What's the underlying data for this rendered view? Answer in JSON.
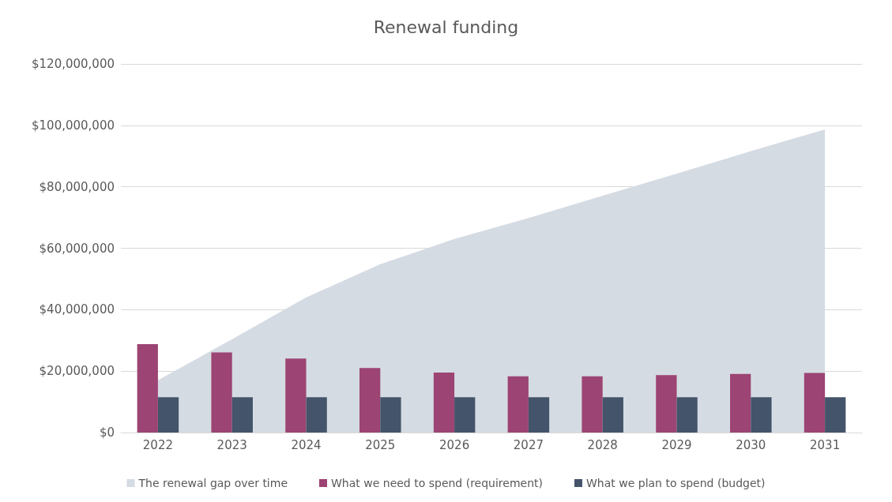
{
  "chart_data": {
    "type": "bar",
    "title": "Renewal funding",
    "categories": [
      "2022",
      "2023",
      "2024",
      "2025",
      "2026",
      "2027",
      "2028",
      "2029",
      "2030",
      "2031"
    ],
    "series": [
      {
        "name": "The renewal gap over time",
        "type": "area",
        "color": "#d5dbe3",
        "values": [
          17000000,
          30400000,
          44000000,
          54800000,
          63000000,
          69800000,
          77100000,
          84300000,
          91600000,
          98700000
        ]
      },
      {
        "name": "What we need to spend (requirement)",
        "color": "#9c4473",
        "values": [
          28800000,
          26100000,
          24100000,
          21000000,
          19500000,
          18300000,
          18300000,
          18700000,
          19100000,
          19400000
        ]
      },
      {
        "name": "What we plan to spend (budget)",
        "color": "#44546a",
        "values": [
          11500000,
          11500000,
          11500000,
          11500000,
          11500000,
          11500000,
          11500000,
          11500000,
          11500000,
          11500000
        ]
      }
    ],
    "ylim": [
      0,
      120000000
    ],
    "yticks": [
      {
        "value": 0,
        "label": "$0"
      },
      {
        "value": 20000000,
        "label": "$20,000,000"
      },
      {
        "value": 40000000,
        "label": "$40,000,000"
      },
      {
        "value": 60000000,
        "label": "$60,000,000"
      },
      {
        "value": 80000000,
        "label": "$80,000,000"
      },
      {
        "value": 100000000,
        "label": "$100,000,000"
      },
      {
        "value": 120000000,
        "label": "$120,000,000"
      }
    ],
    "grid": "y",
    "legend": "bottom"
  }
}
